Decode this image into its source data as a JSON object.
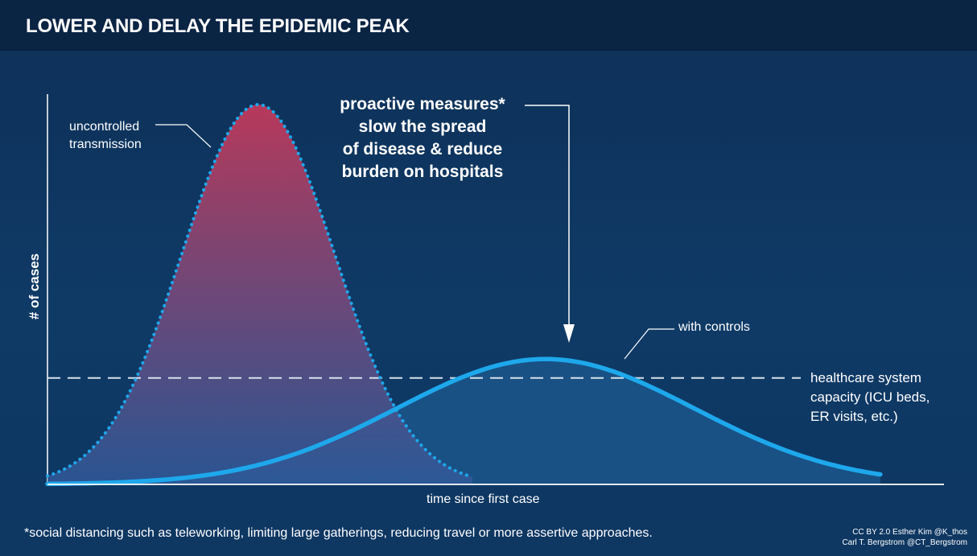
{
  "header": {
    "title": "LOWER AND DELAY THE EPIDEMIC PEAK"
  },
  "annotations": {
    "uncontrolled_line1": "uncontrolled",
    "uncontrolled_line2": "transmission",
    "proactive_lines": [
      "proactive measures*",
      "slow the spread",
      "of disease & reduce",
      "burden on hospitals"
    ],
    "with_controls": "with controls",
    "capacity_lines": [
      "healthcare system",
      "capacity (ICU beds,",
      "ER visits, etc.)"
    ]
  },
  "axes": {
    "ylabel": "# of cases",
    "xlabel": "time since first case"
  },
  "footer": {
    "footnote": "*social distancing such as teleworking, limiting large gatherings, reducing travel or more assertive approaches.",
    "credit_line1": "CC BY 2.0  Esther Kim  @K_thos",
    "credit_line2": "Carl T. Bergstrom  @CT_Bergstrom"
  },
  "colors": {
    "background": "#0f3a66",
    "header": "#0a2444",
    "uncontrolled_top": "#c0395a",
    "uncontrolled_bottom": "#2f5a9a",
    "controlled_fill": "#1d5a8f",
    "curve_stroke": "#1ea8ec",
    "capacity_line": "#d7e1ec",
    "axis": "#ffffff"
  },
  "chart_data": {
    "type": "area",
    "x_range": [
      0,
      100
    ],
    "y_range": [
      0,
      100
    ],
    "series": [
      {
        "id": "uncontrolled",
        "peak_x": 24.8,
        "peak_y": 100,
        "spread": 9.0,
        "style": "dotted"
      },
      {
        "id": "controlled",
        "peak_x": 58.6,
        "peak_y": 33,
        "spread": 17.5,
        "style": "solid"
      }
    ],
    "capacity": 28,
    "grid": false,
    "legend": "none"
  }
}
